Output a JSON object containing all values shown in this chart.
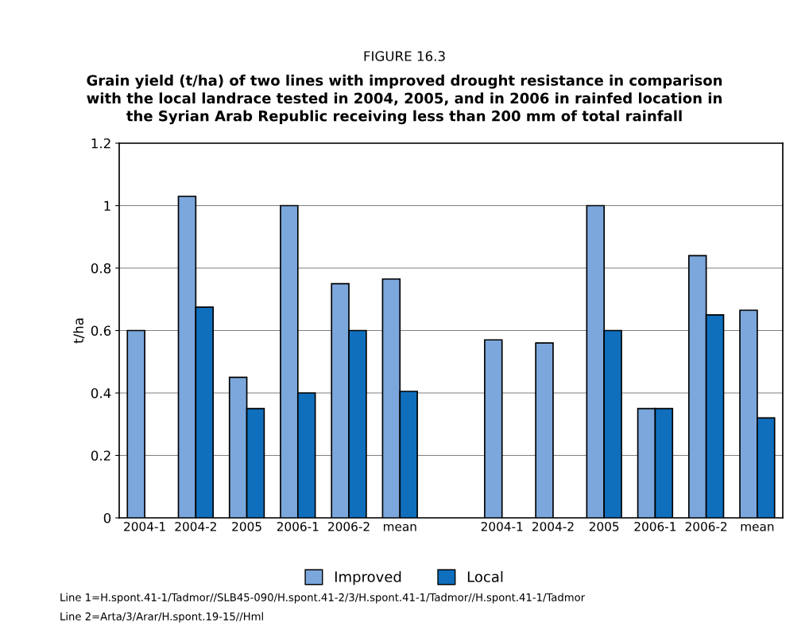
{
  "chart_data": {
    "type": "bar",
    "title": "FIGURE 16.3",
    "subtitle": "Grain yield (t/ha) of two lines with improved drought resistance in comparison\nwith the local landrace tested in 2004, 2005, and in 2006 in rainfed location in\nthe Syrian Arab Republic receiving less than 200 mm of total rainfall",
    "ylabel": "t/ha",
    "categories": [
      "2004-1",
      "2004-2",
      "2005",
      "2006-1",
      "2006-2",
      "mean",
      null,
      "2004-1",
      "2004-2",
      "2005",
      "2006-1",
      "2006-2",
      "mean"
    ],
    "series": [
      {
        "name": "Improved",
        "color": "#7ba7dc",
        "values": [
          0.6,
          1.03,
          0.45,
          1.0,
          0.75,
          0.765,
          null,
          0.57,
          0.56,
          1.0,
          0.35,
          0.84,
          0.665
        ]
      },
      {
        "name": "Local",
        "color": "#0f6fbd",
        "values": [
          null,
          0.675,
          0.35,
          0.4,
          0.6,
          0.405,
          null,
          null,
          null,
          0.6,
          0.35,
          0.65,
          0.32
        ]
      }
    ],
    "ylim": [
      0,
      1.2
    ],
    "yticks": [
      0,
      0.2,
      0.4,
      0.6,
      0.8,
      1,
      1.2
    ],
    "grid": "y",
    "legend": "bottom",
    "annotations": [
      "Line 1=H.spont.41-1/Tadmor//SLB45-090/H.spont.41-2/3/H.spont.41-1/Tadmor//H.spont.41-1/Tadmor",
      "Line 2=Arta/3/Arar/H.spont.19-15//Hml"
    ]
  }
}
